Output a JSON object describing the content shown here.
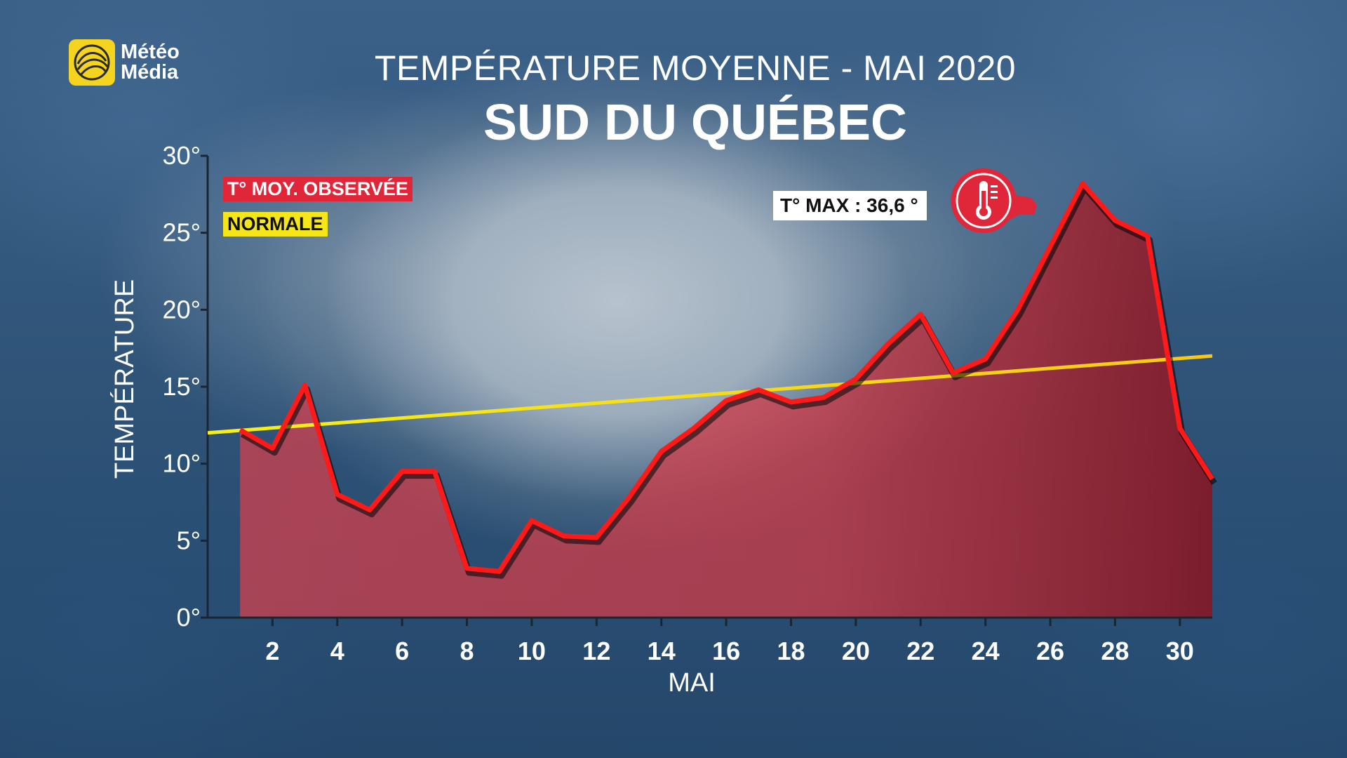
{
  "brand": {
    "line1": "Météo",
    "line2": "Média",
    "color": "#f4d41e"
  },
  "title": "TEMPÉRATURE MOYENNE - MAI 2020",
  "subtitle": "SUD DU QUÉBEC",
  "legend": {
    "observed": {
      "label": "T° MOY. OBSERVÉE",
      "color": "#e0273a"
    },
    "normal": {
      "label": "NORMALE",
      "color": "#f5e61a"
    }
  },
  "annotation": {
    "label": "T° MAX : 36,6 °",
    "icon": "thermometer-icon"
  },
  "chart_data": {
    "type": "area",
    "title": "TEMPÉRATURE MOYENNE - MAI 2020",
    "subtitle": "SUD DU QUÉBEC",
    "xlabel": "MAI",
    "ylabel": "TEMPÉRATURE",
    "ylim": [
      0,
      30
    ],
    "xlim": [
      0,
      31
    ],
    "y_ticks": [
      0,
      5,
      10,
      15,
      20,
      25,
      30
    ],
    "y_tick_labels": [
      "0°",
      "5°",
      "10°",
      "15°",
      "20°",
      "25°",
      "30°"
    ],
    "x_ticks": [
      2,
      4,
      6,
      8,
      10,
      12,
      14,
      16,
      18,
      20,
      22,
      24,
      26,
      28,
      30
    ],
    "x_tick_labels": [
      "2",
      "4",
      "6",
      "8",
      "10",
      "12",
      "14",
      "16",
      "18",
      "20",
      "22",
      "24",
      "26",
      "28",
      "30"
    ],
    "series": [
      {
        "name": "T° MOY. OBSERVÉE",
        "color": "#ff1a1a",
        "x": [
          1,
          2,
          3,
          4,
          5,
          6,
          7,
          8,
          9,
          10,
          11,
          12,
          13,
          14,
          15,
          16,
          17,
          18,
          19,
          20,
          21,
          22,
          23,
          24,
          25,
          26,
          27,
          28,
          29,
          30,
          31
        ],
        "values": [
          12.2,
          11.0,
          15.1,
          8.0,
          7.0,
          9.5,
          9.5,
          3.2,
          3.0,
          6.3,
          5.3,
          5.2,
          7.8,
          10.8,
          12.3,
          14.1,
          14.8,
          14.0,
          14.3,
          15.5,
          17.8,
          19.7,
          15.9,
          16.8,
          20.0,
          24.1,
          28.2,
          25.8,
          24.8,
          12.3,
          9.0
        ]
      },
      {
        "name": "NORMALE",
        "color": "#f5e61a",
        "x": [
          0,
          31
        ],
        "values": [
          12.0,
          17.0
        ]
      }
    ],
    "annotations": [
      {
        "text": "T° MAX : 36,6 °",
        "x": 27
      }
    ],
    "legend_position": "top-left",
    "grid": false
  }
}
